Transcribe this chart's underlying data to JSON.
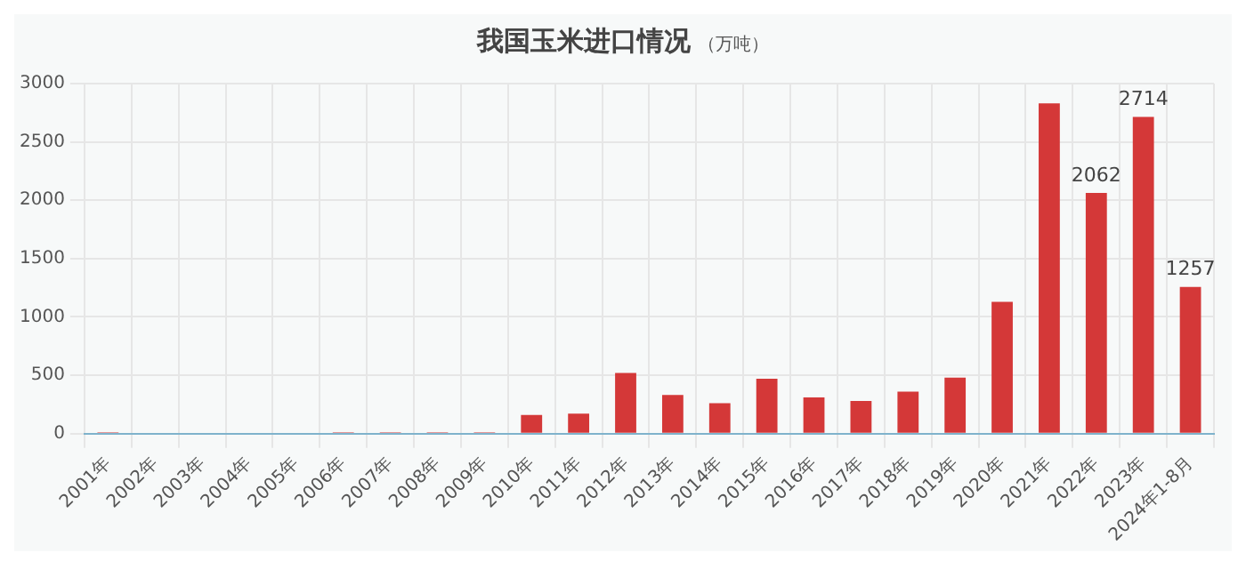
{
  "chart_data": {
    "type": "bar",
    "title": "我国玉米进口情况",
    "subtitle": "（万吨）",
    "categories": [
      "2001年",
      "2002年",
      "2003年",
      "2004年",
      "2005年",
      "2006年",
      "2007年",
      "2008年",
      "2009年",
      "2010年",
      "2011年",
      "2012年",
      "2013年",
      "2014年",
      "2015年",
      "2016年",
      "2017年",
      "2018年",
      "2019年",
      "2020年",
      "2021年",
      "2022年",
      "2023年",
      "2024年1-8月"
    ],
    "values": [
      10,
      0,
      0,
      0,
      0,
      10,
      10,
      10,
      10,
      160,
      170,
      520,
      330,
      260,
      470,
      310,
      280,
      360,
      480,
      1130,
      2830,
      2062,
      2714,
      1257
    ],
    "value_labels": [
      null,
      null,
      null,
      null,
      null,
      null,
      null,
      null,
      null,
      null,
      null,
      null,
      null,
      null,
      null,
      null,
      null,
      null,
      null,
      null,
      null,
      "2062",
      "2714",
      "1257"
    ],
    "color": "#d43838",
    "ylim": [
      0,
      3000
    ],
    "yticks": [
      0,
      500,
      1000,
      1500,
      2000,
      2500,
      3000
    ],
    "grid": true
  }
}
